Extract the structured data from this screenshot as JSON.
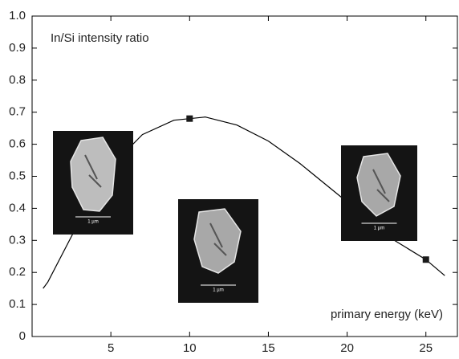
{
  "chart_data": {
    "type": "line",
    "annotations": [
      "In/Si intensity ratio",
      "primary energy (keV)"
    ],
    "series": [
      {
        "style": "line",
        "color": "#000000",
        "x": [
          0.7,
          1,
          3,
          5,
          7,
          9,
          11,
          13,
          15,
          17,
          19,
          21,
          23,
          25,
          26.2
        ],
        "values": [
          0.15,
          0.17,
          0.36,
          0.53,
          0.63,
          0.675,
          0.685,
          0.66,
          0.61,
          0.54,
          0.46,
          0.38,
          0.3,
          0.24,
          0.19
        ]
      },
      {
        "style": "markers",
        "color": "#1a1a1a",
        "x": [
          10,
          25
        ],
        "values": [
          0.68,
          0.24
        ]
      }
    ],
    "insets": [
      {
        "scale_label": "1 µm"
      },
      {
        "scale_label": "1 µm"
      },
      {
        "scale_label": "1 µm"
      }
    ],
    "xlim": [
      0,
      27
    ],
    "xticks": [
      5,
      10,
      15,
      20,
      25
    ],
    "ylim": [
      0,
      1
    ],
    "yticks": [
      0,
      0.1,
      0.2,
      0.3,
      0.4,
      0.5,
      0.6,
      0.7,
      0.8,
      0.9,
      {
        "value": 1,
        "label": "1.0"
      }
    ]
  }
}
